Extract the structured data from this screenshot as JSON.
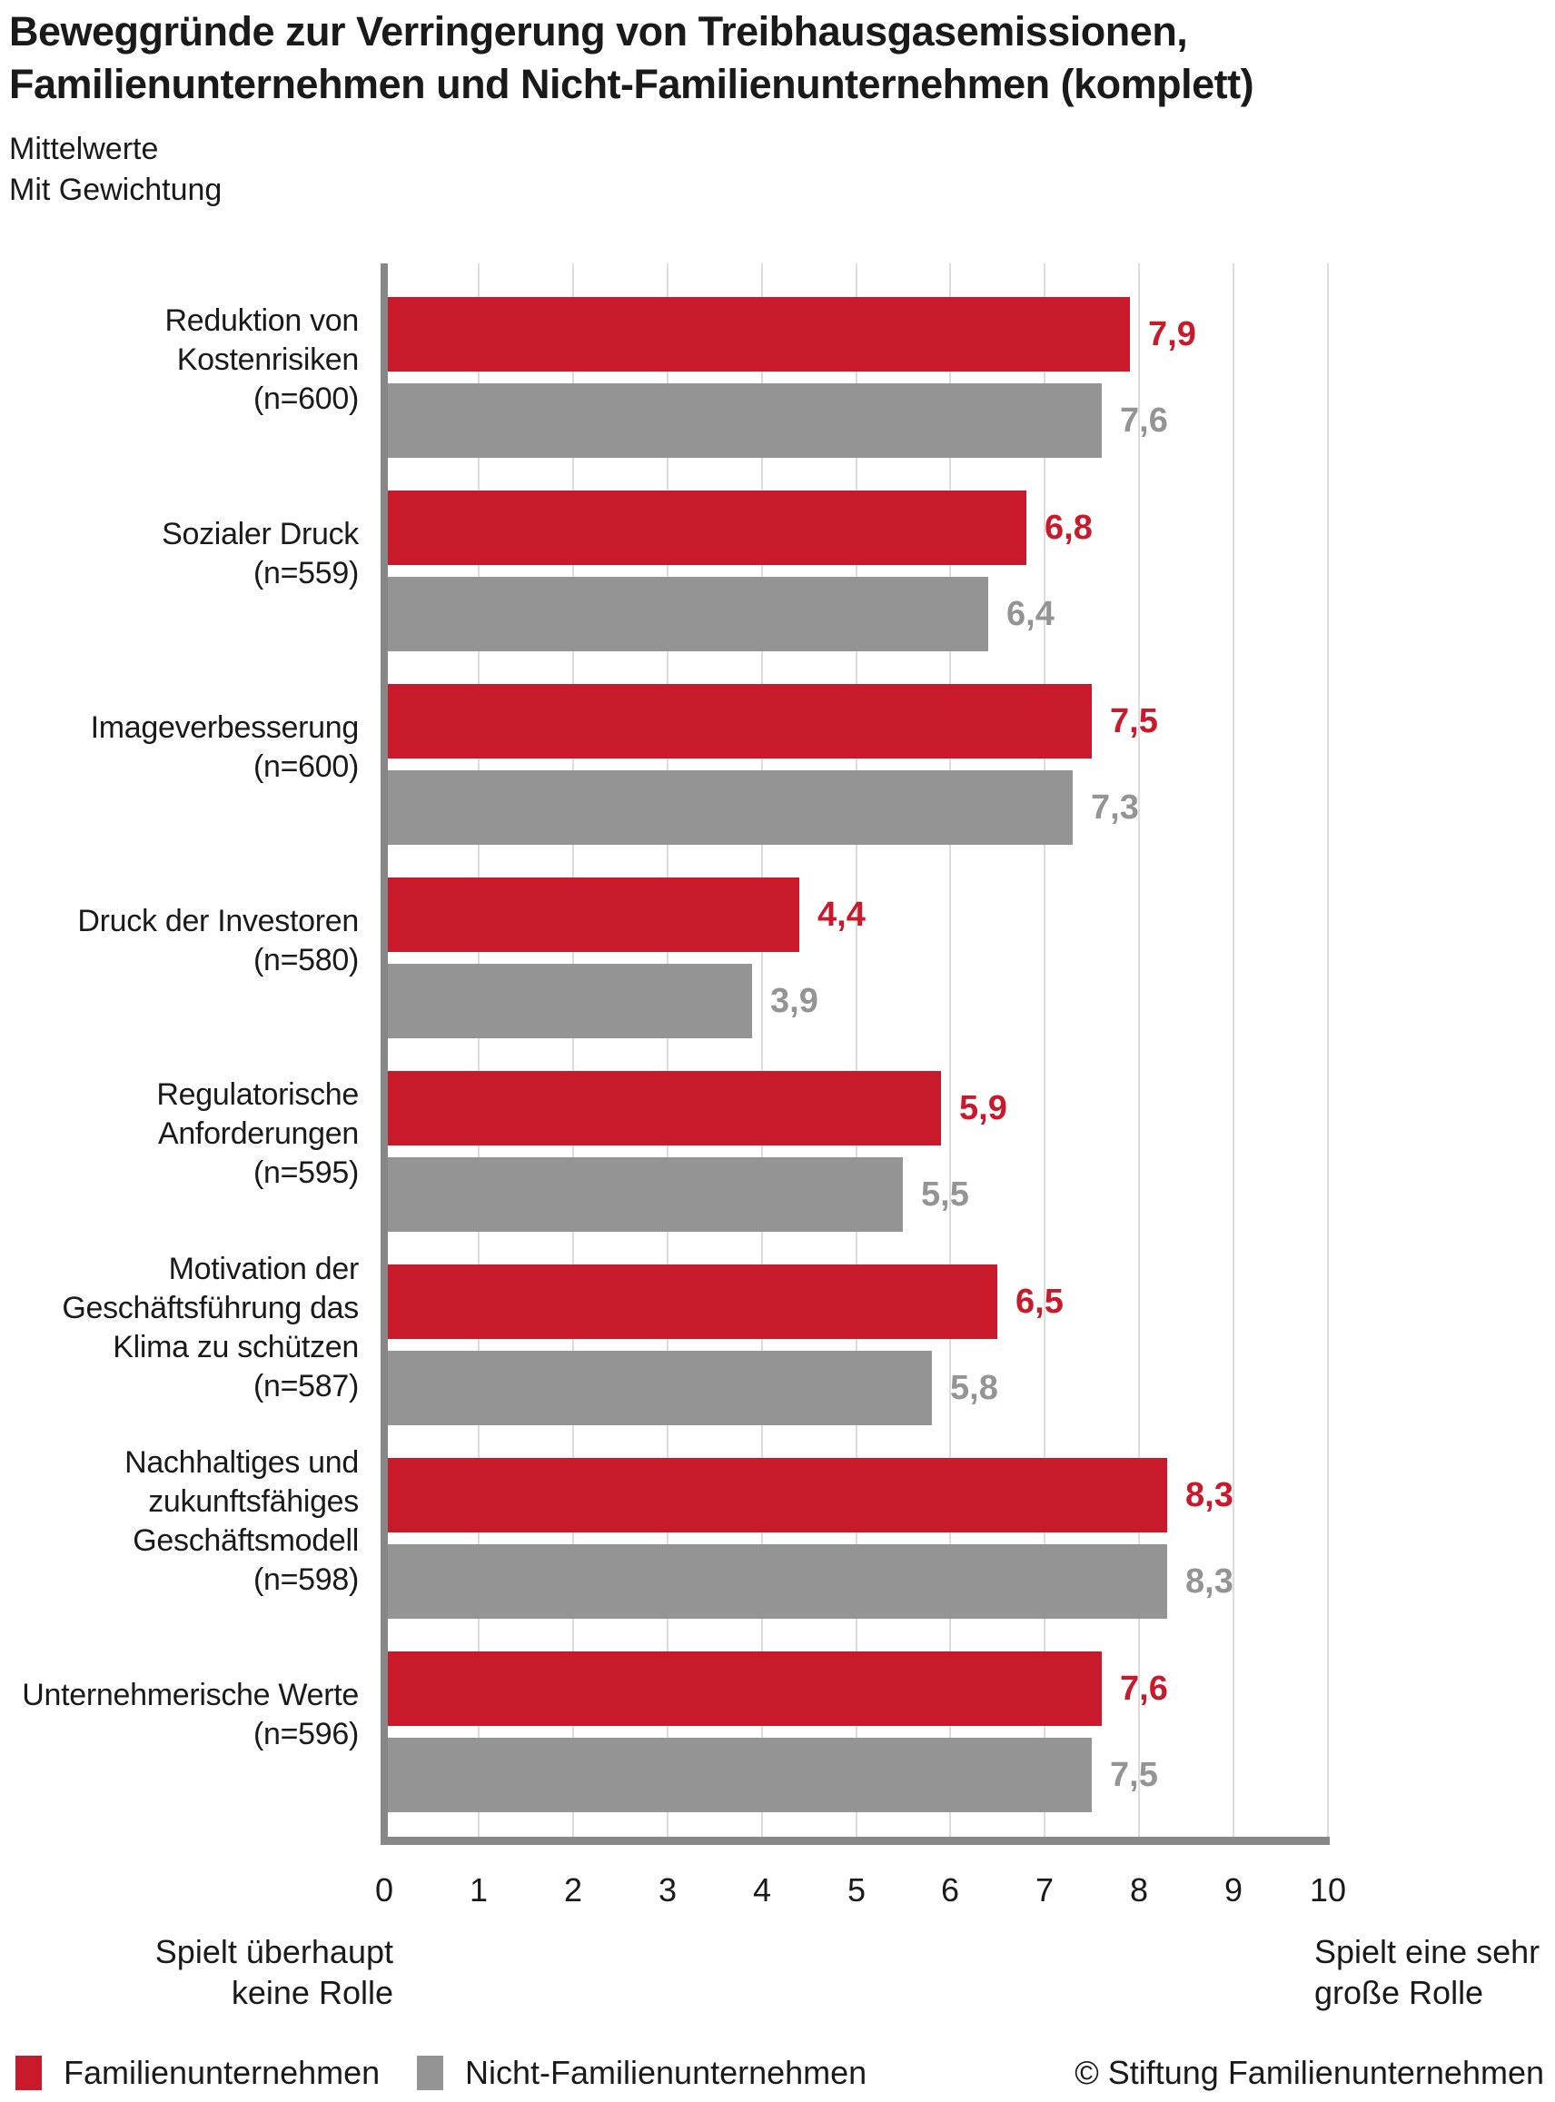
{
  "title": {
    "line1": "Beweggründe zur Verringerung von Treibhausgasemissionen,",
    "line2": "Familienunternehmen und Nicht-Familienunternehmen (komplett)"
  },
  "subtitle": {
    "line1": "Mittelwerte",
    "line2": "Mit Gewichtung"
  },
  "chart_data": {
    "type": "bar",
    "orientation": "horizontal",
    "title": "Beweggründe zur Verringerung von Treibhausgasemissionen, Familienunternehmen und Nicht-Familienunternehmen (komplett)",
    "xlim": [
      0,
      10
    ],
    "x_ticks": [
      "0",
      "1",
      "2",
      "3",
      "4",
      "5",
      "6",
      "7",
      "8",
      "9",
      "10"
    ],
    "grid": true,
    "legend_position": "bottom",
    "categories": [
      {
        "label_lines": [
          "Reduktion von",
          "Kostenrisiken",
          "(n=600)"
        ]
      },
      {
        "label_lines": [
          "Sozialer Druck",
          "(n=559)"
        ]
      },
      {
        "label_lines": [
          "Imageverbesserung",
          "(n=600)"
        ]
      },
      {
        "label_lines": [
          "Druck der Investoren",
          "(n=580)"
        ]
      },
      {
        "label_lines": [
          "Regulatorische",
          "Anforderungen",
          "(n=595)"
        ]
      },
      {
        "label_lines": [
          "Motivation der",
          "Geschäftsführung das",
          "Klima zu schützen",
          "(n=587)"
        ]
      },
      {
        "label_lines": [
          "Nachhaltiges und",
          "zukunftsfähiges",
          "Geschäftsmodell",
          "(n=598)"
        ]
      },
      {
        "label_lines": [
          "Unternehmerische Werte",
          "(n=596)"
        ]
      }
    ],
    "series": [
      {
        "name": "Familienunternehmen",
        "color": "#C91A2B",
        "values": [
          7.9,
          6.8,
          7.5,
          4.4,
          5.9,
          6.5,
          8.3,
          7.6
        ],
        "labels": [
          "7,9",
          "6,8",
          "7,5",
          "4,4",
          "5,9",
          "6,5",
          "8,3",
          "7,6"
        ]
      },
      {
        "name": "Nicht-Familienunternehmen",
        "color": "#949494",
        "values": [
          7.6,
          6.4,
          7.3,
          3.9,
          5.5,
          5.8,
          8.3,
          7.5
        ],
        "labels": [
          "7,6",
          "6,4",
          "7,3",
          "3,9",
          "5,5",
          "5,8",
          "8,3",
          "7,5"
        ]
      }
    ],
    "x_axis_caption_left": [
      "Spielt überhaupt",
      "keine Rolle"
    ],
    "x_axis_caption_right": [
      "Spielt eine sehr",
      "große Rolle"
    ]
  },
  "legend": {
    "items": [
      {
        "label": "Familienunternehmen",
        "color": "#C91A2B"
      },
      {
        "label": "Nicht-Familienunternehmen",
        "color": "#949494"
      }
    ]
  },
  "footer": {
    "copyright": "© Stiftung Familienunternehmen"
  },
  "colors": {
    "bar_red": "#C91A2B",
    "bar_gray": "#949494",
    "axis": "#878787",
    "grid": "#DCDCDC",
    "text": "#1A1A1A",
    "background": "#FFFFFF"
  }
}
